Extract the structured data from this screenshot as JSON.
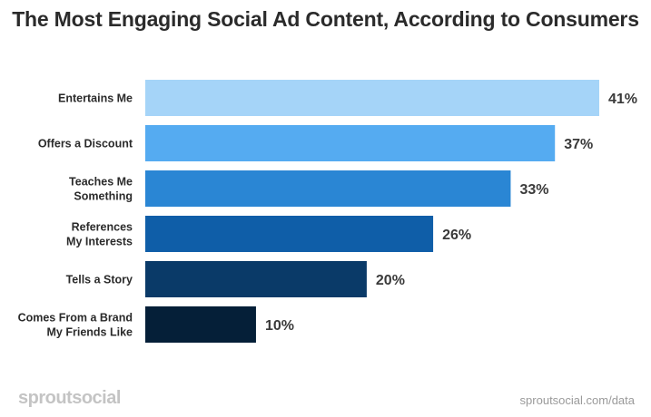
{
  "title": "The Most Engaging Social Ad Content, According to Consumers",
  "footer": {
    "brand": "sproutsocial",
    "source": "sproutsocial.com/data"
  },
  "chart_data": {
    "type": "bar",
    "orientation": "horizontal",
    "title": "The Most Engaging Social Ad Content, According to Consumers",
    "xlabel": "",
    "ylabel": "",
    "xlim": [
      0,
      41
    ],
    "grid": false,
    "legend": "none",
    "categories": [
      [
        "Entertains Me"
      ],
      [
        "Offers a Discount"
      ],
      [
        "Teaches Me",
        "Something"
      ],
      [
        "References",
        "My Interests"
      ],
      [
        "Tells a Story"
      ],
      [
        "Comes From a Brand",
        "My Friends Like"
      ]
    ],
    "values": [
      41,
      37,
      33,
      26,
      20,
      10
    ],
    "value_labels": [
      "41%",
      "37%",
      "33%",
      "26%",
      "20%",
      "10%"
    ],
    "colors": [
      "#a5d4f8",
      "#55abf1",
      "#2a86d4",
      "#0f5ea8",
      "#0a3a68",
      "#051f38"
    ]
  }
}
